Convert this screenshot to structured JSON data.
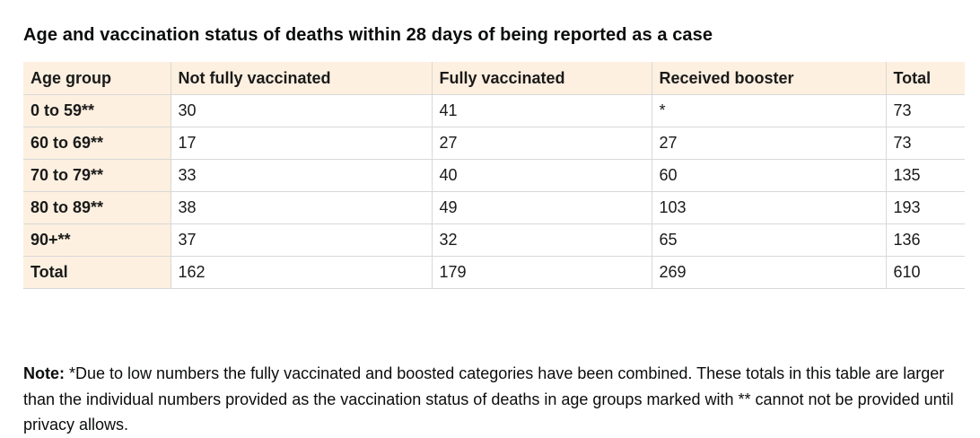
{
  "title": "Age and vaccination status of deaths within 28 days of being reported as a case",
  "table": {
    "headers": [
      "Age group",
      "Not fully vaccinated",
      "Fully vaccinated",
      "Received booster",
      "Total"
    ],
    "rows": [
      {
        "label": "0 to 59**",
        "cells": [
          "30",
          "41",
          "*",
          "73"
        ]
      },
      {
        "label": "60 to 69**",
        "cells": [
          "17",
          "27",
          "27",
          "73"
        ]
      },
      {
        "label": "70 to 79**",
        "cells": [
          "33",
          "40",
          "60",
          "135"
        ]
      },
      {
        "label": "80 to 89**",
        "cells": [
          "38",
          "49",
          "103",
          "193"
        ]
      },
      {
        "label": "90+**",
        "cells": [
          "37",
          "32",
          "65",
          "136"
        ]
      },
      {
        "label": "Total",
        "cells": [
          "162",
          "179",
          "269",
          "610"
        ]
      }
    ]
  },
  "note": {
    "label": "Note:",
    "text": " *Due to low numbers the fully vaccinated and boosted categories have been combined. These totals in this table are larger than the individual numbers provided as the vaccination status of deaths in age groups marked with ** cannot not be provided until privacy allows."
  },
  "colors": {
    "header_bg": "#fdf0e0",
    "border": "#d8d8d8",
    "text": "#0b0c0c"
  }
}
